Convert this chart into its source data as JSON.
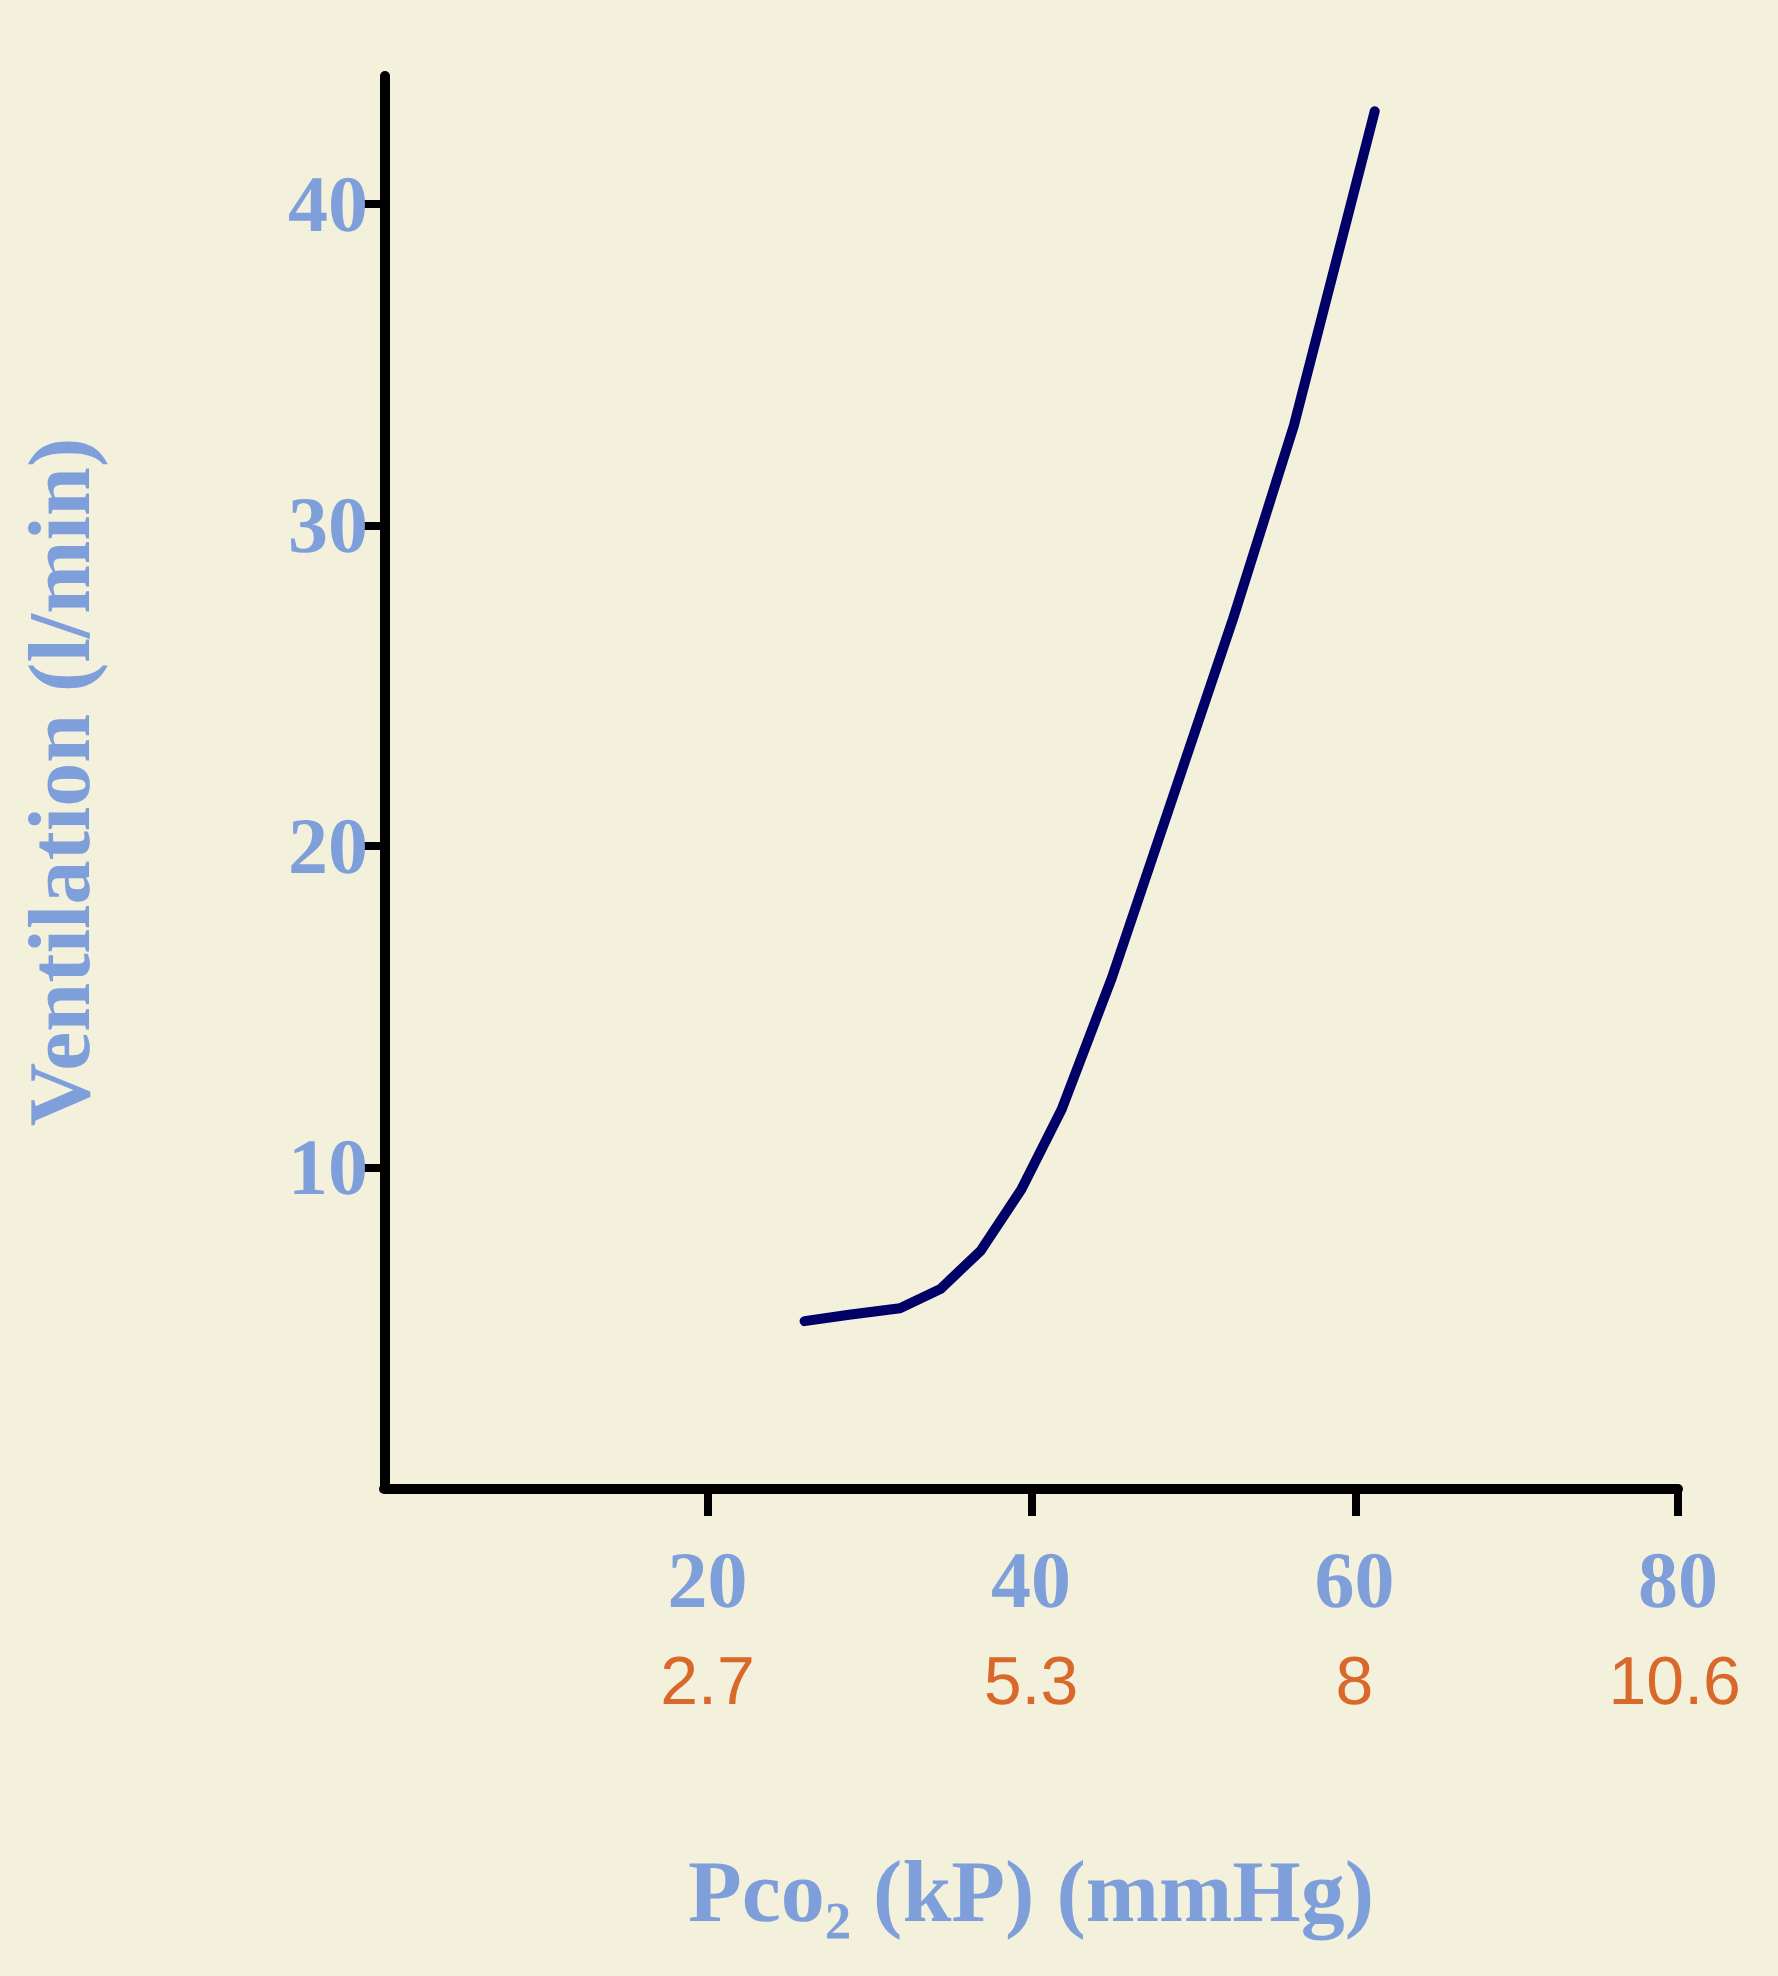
{
  "chart_data": {
    "type": "line",
    "xlabel": "Pco₂ (kP) (mmHg)",
    "ylabel": "Ventilation (l/min)",
    "xlim": [
      0,
      80
    ],
    "xticks": [
      20,
      40,
      60,
      80
    ],
    "ylim": [
      0,
      44
    ],
    "yticks": [
      10,
      20,
      30,
      40
    ],
    "x2lim": [
      0,
      10.667
    ],
    "x2ticks": [
      {
        "value": 2.667,
        "label": "2.7"
      },
      {
        "value": 5.333,
        "label": "5.3"
      },
      8,
      {
        "value": 10.64,
        "label": "10.6"
      }
    ],
    "grid": false,
    "marker": "none",
    "line_style": "solid",
    "series": [
      {
        "color": "#000066",
        "x": [
          26,
          28.75,
          31.9,
          34.4,
          36.9,
          39.4,
          41.9,
          45,
          48.75,
          52.5,
          56.25,
          61.25
        ],
        "values": [
          5.2,
          5.4,
          5.6,
          6.2,
          7.4,
          9.3,
          11.8,
          15.9,
          21.5,
          27.1,
          33.1,
          42.9
        ]
      }
    ]
  }
}
